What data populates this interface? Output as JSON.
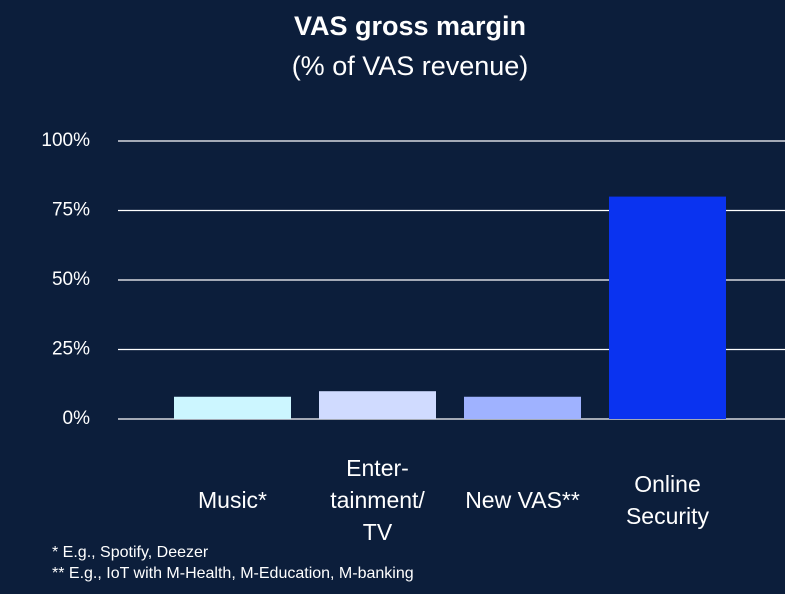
{
  "chart_data": {
    "type": "bar",
    "title": "VAS gross margin",
    "subtitle": "(% of VAS revenue)",
    "categories": [
      "Music*",
      "Enter-\ntainment/\nTV",
      "New VAS**",
      "Online\nSecurity"
    ],
    "values": [
      8,
      10,
      8,
      80
    ],
    "colors": [
      "#ccf6ff",
      "#d0dbff",
      "#9fb2ff",
      "#0a33f0"
    ],
    "ylim": [
      0,
      100
    ],
    "yticks": [
      {
        "value": 0,
        "label": "0%"
      },
      {
        "value": 25,
        "label": "25%"
      },
      {
        "value": 50,
        "label": "50%"
      },
      {
        "value": 75,
        "label": "75%"
      },
      {
        "value": 100,
        "label": "100%"
      }
    ],
    "grid": true,
    "notes": [
      "* E.g., Spotify, Deezer",
      "** E.g., IoT with M-Health, M-Education, M-banking"
    ]
  }
}
